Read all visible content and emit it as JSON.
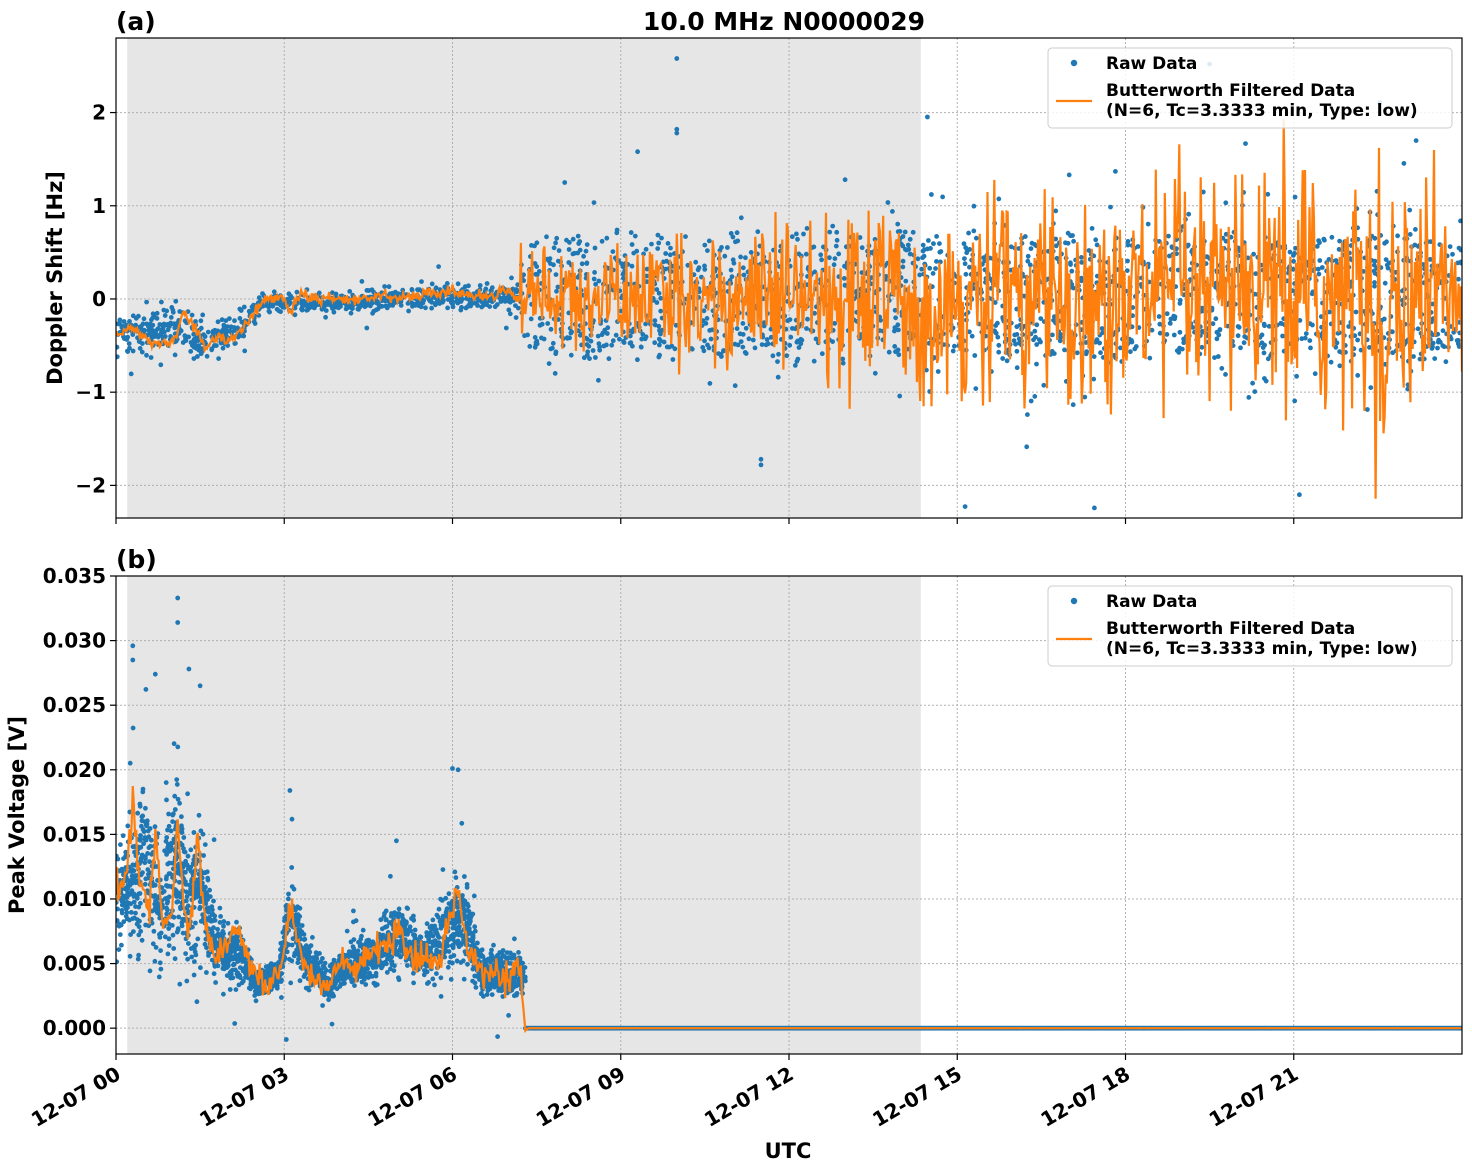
{
  "figure": {
    "title": "10.0 MHz N0000029",
    "xlabel": "UTC"
  },
  "colors": {
    "raw": "#1f77b4",
    "filtered": "#ff7f0e",
    "night_shade": "#e6e6e6",
    "grid": "#b0b0b0"
  },
  "chart_data": [
    {
      "type": "scatter",
      "panel_label": "(a)",
      "ylabel": "Doppler Shift [Hz]",
      "xlim_hours": [
        0,
        24
      ],
      "ylim": [
        -2.35,
        2.8
      ],
      "yticks": [
        -2,
        -1,
        0,
        1,
        2
      ],
      "ytick_labels": [
        "−2",
        "−1",
        "0",
        "1",
        "2"
      ],
      "xticks_hours": [
        0,
        3,
        6,
        9,
        12,
        15,
        18,
        21
      ],
      "xtick_labels": [
        "12-07 00",
        "12-07 03",
        "12-07 06",
        "12-07 09",
        "12-07 12",
        "12-07 15",
        "12-07 18",
        "12-07 21"
      ],
      "show_xtick_labels": false,
      "grid": true,
      "shaded_interval_hours": [
        0.2,
        14.35
      ],
      "legend": {
        "placement": "top-right",
        "entries": [
          "Raw Data",
          "Butterworth Filtered Data\n(N=6, Tc=3.3333 min, Type: low)"
        ]
      },
      "series": [
        {
          "name": "Raw Data",
          "style": "points",
          "envelope": [
            [
              0.0,
              -0.35,
              0.25
            ],
            [
              0.5,
              -0.4,
              0.2
            ],
            [
              1.0,
              -0.3,
              0.2
            ],
            [
              1.5,
              -0.45,
              0.2
            ],
            [
              2.2,
              -0.35,
              0.2
            ],
            [
              2.6,
              -0.05,
              0.1
            ],
            [
              3.0,
              -0.05,
              0.1
            ],
            [
              4.0,
              -0.05,
              0.08
            ],
            [
              5.0,
              0.0,
              0.1
            ],
            [
              6.0,
              0.02,
              0.1
            ],
            [
              7.1,
              0.02,
              0.12
            ],
            [
              7.25,
              0.0,
              0.55
            ],
            [
              9.0,
              0.0,
              0.6
            ],
            [
              12.0,
              0.0,
              0.6
            ],
            [
              14.4,
              0.0,
              0.6
            ],
            [
              14.5,
              0.0,
              0.75
            ],
            [
              18.0,
              0.05,
              0.75
            ],
            [
              21.0,
              0.0,
              0.8
            ],
            [
              24.0,
              0.0,
              0.8
            ]
          ],
          "notable_points": [
            [
              10.0,
              2.58
            ],
            [
              10.0,
              1.82
            ],
            [
              10.0,
              1.78
            ],
            [
              9.3,
              1.58
            ],
            [
              11.5,
              -1.72
            ],
            [
              11.5,
              -1.78
            ],
            [
              21.1,
              -2.1
            ],
            [
              19.5,
              2.52
            ],
            [
              13.0,
              1.28
            ],
            [
              8.0,
              1.25
            ]
          ]
        },
        {
          "name": "Butterworth Filtered Data\n(N=6, Tc=3.3333 min, Type: low)",
          "style": "line",
          "shape": [
            [
              0.0,
              -0.4
            ],
            [
              0.3,
              -0.32
            ],
            [
              0.6,
              -0.45
            ],
            [
              0.9,
              -0.5
            ],
            [
              1.1,
              -0.38
            ],
            [
              1.2,
              -0.12
            ],
            [
              1.4,
              -0.3
            ],
            [
              1.6,
              -0.55
            ],
            [
              1.8,
              -0.4
            ],
            [
              2.0,
              -0.45
            ],
            [
              2.2,
              -0.35
            ],
            [
              2.4,
              -0.2
            ],
            [
              2.6,
              -0.02
            ],
            [
              3.0,
              0.02
            ],
            [
              3.1,
              -0.15
            ],
            [
              3.3,
              0.05
            ],
            [
              3.6,
              0.0
            ],
            [
              4.5,
              0.0
            ],
            [
              4.7,
              0.08
            ],
            [
              5.0,
              0.0
            ],
            [
              5.5,
              0.05
            ],
            [
              6.0,
              0.08
            ],
            [
              6.5,
              0.02
            ],
            [
              7.0,
              0.1
            ],
            [
              7.2,
              0.0
            ]
          ],
          "noise_amplitude_after_7h": [
            [
              7.2,
              0.25
            ],
            [
              9.0,
              0.3
            ],
            [
              12.0,
              0.45
            ],
            [
              14.4,
              0.55
            ],
            [
              24.0,
              0.75
            ]
          ]
        }
      ]
    },
    {
      "type": "scatter",
      "panel_label": "(b)",
      "ylabel": "Peak Voltage [V]",
      "xlim_hours": [
        0,
        24
      ],
      "ylim": [
        -0.002,
        0.035
      ],
      "yticks": [
        0.0,
        0.005,
        0.01,
        0.015,
        0.02,
        0.025,
        0.03,
        0.035
      ],
      "ytick_labels": [
        "0.000",
        "0.005",
        "0.010",
        "0.015",
        "0.020",
        "0.025",
        "0.030",
        "0.035"
      ],
      "xticks_hours": [
        0,
        3,
        6,
        9,
        12,
        15,
        18,
        21
      ],
      "xtick_labels": [
        "12-07 00",
        "12-07 03",
        "12-07 06",
        "12-07 09",
        "12-07 12",
        "12-07 15",
        "12-07 18",
        "12-07 21"
      ],
      "show_xtick_labels": true,
      "grid": true,
      "shaded_interval_hours": [
        0.2,
        14.35
      ],
      "legend": {
        "placement": "top-right",
        "entries": [
          "Raw Data",
          "Butterworth Filtered Data\n(N=6, Tc=3.3333 min, Type: low)"
        ]
      },
      "series": [
        {
          "name": "Raw Data",
          "style": "points",
          "envelope": [
            [
              0.0,
              0.0105,
              0.003
            ],
            [
              0.3,
              0.011,
              0.004
            ],
            [
              0.5,
              0.013,
              0.006
            ],
            [
              0.8,
              0.009,
              0.004
            ],
            [
              1.1,
              0.014,
              0.006
            ],
            [
              1.3,
              0.009,
              0.004
            ],
            [
              1.5,
              0.011,
              0.004
            ],
            [
              1.8,
              0.006,
              0.002
            ],
            [
              2.2,
              0.006,
              0.002
            ],
            [
              2.5,
              0.0035,
              0.0008
            ],
            [
              2.9,
              0.004,
              0.001
            ],
            [
              3.1,
              0.009,
              0.003
            ],
            [
              3.4,
              0.005,
              0.0015
            ],
            [
              3.8,
              0.0035,
              0.001
            ],
            [
              4.2,
              0.005,
              0.0015
            ],
            [
              4.6,
              0.0055,
              0.0015
            ],
            [
              5.0,
              0.0075,
              0.002
            ],
            [
              5.5,
              0.0055,
              0.0015
            ],
            [
              6.0,
              0.008,
              0.003
            ],
            [
              6.2,
              0.0085,
              0.003
            ],
            [
              6.5,
              0.0045,
              0.0015
            ],
            [
              7.0,
              0.004,
              0.0015
            ],
            [
              7.25,
              0.004,
              0.0015
            ]
          ],
          "after_7_3h_value": 0.0,
          "notable_points": [
            [
              1.1,
              0.0333
            ],
            [
              1.1,
              0.0314
            ],
            [
              0.3,
              0.0296
            ],
            [
              0.3,
              0.0285
            ],
            [
              1.3,
              0.0278
            ],
            [
              1.5,
              0.0265
            ],
            [
              0.7,
              0.0274
            ],
            [
              3.1,
              0.0184
            ],
            [
              6.0,
              0.0201
            ],
            [
              6.1,
              0.02
            ],
            [
              5.0,
              0.0145
            ]
          ]
        },
        {
          "name": "Butterworth Filtered Data\n(N=6, Tc=3.3333 min, Type: low)",
          "style": "line",
          "shape": [
            [
              0.0,
              0.0112
            ],
            [
              0.15,
              0.0105
            ],
            [
              0.3,
              0.0175
            ],
            [
              0.45,
              0.011
            ],
            [
              0.6,
              0.0085
            ],
            [
              0.7,
              0.015
            ],
            [
              0.85,
              0.0075
            ],
            [
              1.0,
              0.009
            ],
            [
              1.1,
              0.017
            ],
            [
              1.2,
              0.0095
            ],
            [
              1.3,
              0.0065
            ],
            [
              1.45,
              0.015
            ],
            [
              1.6,
              0.0075
            ],
            [
              1.8,
              0.0055
            ],
            [
              2.0,
              0.0065
            ],
            [
              2.2,
              0.0075
            ],
            [
              2.4,
              0.0045
            ],
            [
              2.7,
              0.0033
            ],
            [
              2.95,
              0.0045
            ],
            [
              3.1,
              0.0095
            ],
            [
              3.25,
              0.0065
            ],
            [
              3.5,
              0.004
            ],
            [
              3.8,
              0.0033
            ],
            [
              4.0,
              0.005
            ],
            [
              4.3,
              0.0045
            ],
            [
              4.6,
              0.006
            ],
            [
              4.9,
              0.0065
            ],
            [
              5.0,
              0.0078
            ],
            [
              5.2,
              0.0055
            ],
            [
              5.5,
              0.005
            ],
            [
              5.8,
              0.0055
            ],
            [
              6.0,
              0.0095
            ],
            [
              6.1,
              0.0105
            ],
            [
              6.3,
              0.006
            ],
            [
              6.6,
              0.0045
            ],
            [
              7.0,
              0.004
            ],
            [
              7.2,
              0.0045
            ],
            [
              7.3,
              -0.0002
            ],
            [
              7.35,
              0.0
            ],
            [
              24.0,
              0.0
            ]
          ]
        }
      ]
    }
  ]
}
